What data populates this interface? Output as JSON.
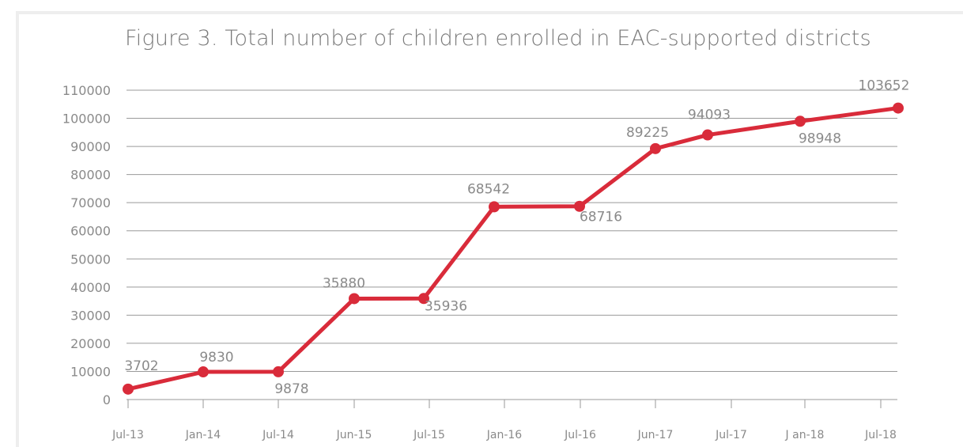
{
  "chart_data": {
    "type": "line",
    "title": "Figure 3. Total number of children enrolled in EAC-supported districts",
    "xlabel": "",
    "ylabel": "",
    "categories": [
      "Jul-13",
      "Jan-14",
      "Jul-14",
      "Jun-15",
      "Jul-15",
      "Jan-16",
      "Jul-16",
      "Jun-17",
      "Jul-17",
      "J an-18",
      "Jul-18"
    ],
    "series": [
      {
        "values": [
          3702,
          9830,
          9878,
          35880,
          35936,
          68542,
          68716,
          89225,
          94093,
          98948,
          103652
        ],
        "color": "#d92b3a"
      }
    ],
    "ylim": [
      0,
      110000
    ],
    "yticks": [
      "0",
      "10000",
      "20000",
      "30000",
      "40000",
      "50000",
      "60000",
      "70000",
      "80000",
      "90000",
      "100000",
      "110000"
    ],
    "grid": true,
    "legend": "none"
  }
}
